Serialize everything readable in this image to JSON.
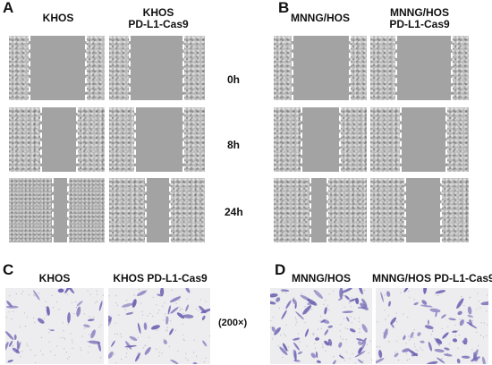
{
  "panels": {
    "A": {
      "letter": "A",
      "columns": [
        {
          "line1": "KHOS",
          "line2": ""
        },
        {
          "line1": "KHOS",
          "line2": "PD-L1-Cas9"
        }
      ]
    },
    "B": {
      "letter": "B",
      "columns": [
        {
          "line1": "MNNG/HOS",
          "line2": ""
        },
        {
          "line1": "MNNG/HOS",
          "line2": "PD-L1-Cas9"
        }
      ]
    },
    "C": {
      "letter": "C",
      "columns": [
        "KHOS",
        "KHOS PD-L1-Cas9"
      ]
    },
    "D": {
      "letter": "D",
      "columns": [
        "MNNG/HOS",
        "MNNG/HOS PD-L1-Cas9"
      ]
    }
  },
  "timepoints": [
    "0h",
    "8h",
    "24h"
  ],
  "magnification": "(200×)",
  "colors": {
    "scratch_gap": "#a3a3a3",
    "dashed_line": "#ffffff",
    "crystal_violet": "#6a5fb0",
    "membrane_bg": "#ededf0"
  }
}
